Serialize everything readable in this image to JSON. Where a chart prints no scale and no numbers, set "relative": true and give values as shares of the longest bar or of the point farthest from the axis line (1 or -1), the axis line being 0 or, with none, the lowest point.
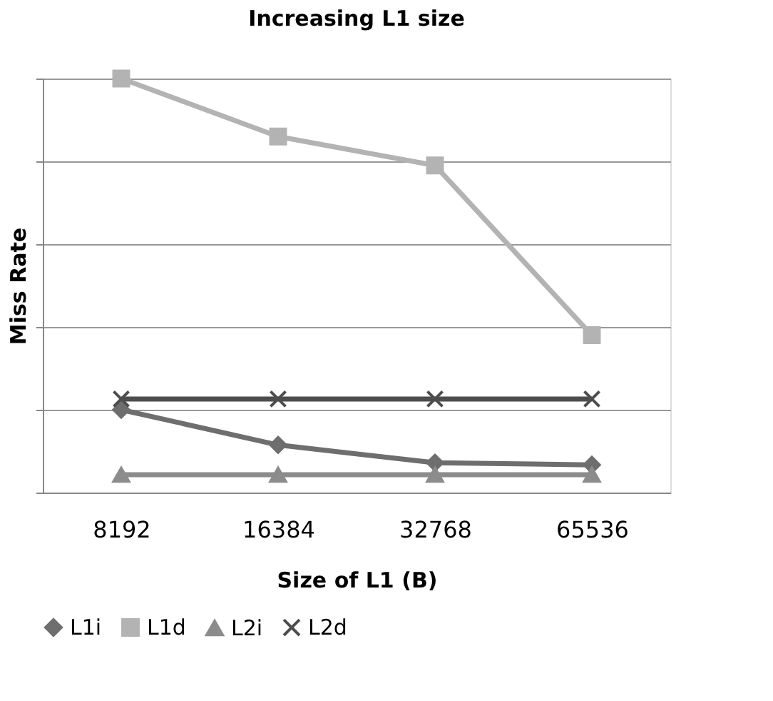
{
  "chart_data": {
    "type": "line",
    "title": "Increasing L1 size",
    "xlabel": "Size of L1 (B)",
    "ylabel": "Miss Rate",
    "categories": [
      "8192",
      "16384",
      "32768",
      "65536"
    ],
    "relative": true,
    "grid": "y",
    "legend": "bottom",
    "series": [
      {
        "name": "L1i",
        "color": "#6e6e6e",
        "marker": "diamond",
        "values": [
          0.2,
          0.115,
          0.072,
          0.067
        ]
      },
      {
        "name": "L1d",
        "color": "#b3b3b3",
        "marker": "square",
        "values": [
          1,
          0.86,
          0.79,
          0.38
        ]
      },
      {
        "name": "L2i",
        "color": "#8c8c8c",
        "marker": "triangle",
        "values": [
          0.043,
          0.043,
          0.043,
          0.043
        ]
      },
      {
        "name": "L2d",
        "color": "#4d4d4d",
        "marker": "cross",
        "values": [
          0.226,
          0.226,
          0.226,
          0.226
        ]
      }
    ]
  }
}
